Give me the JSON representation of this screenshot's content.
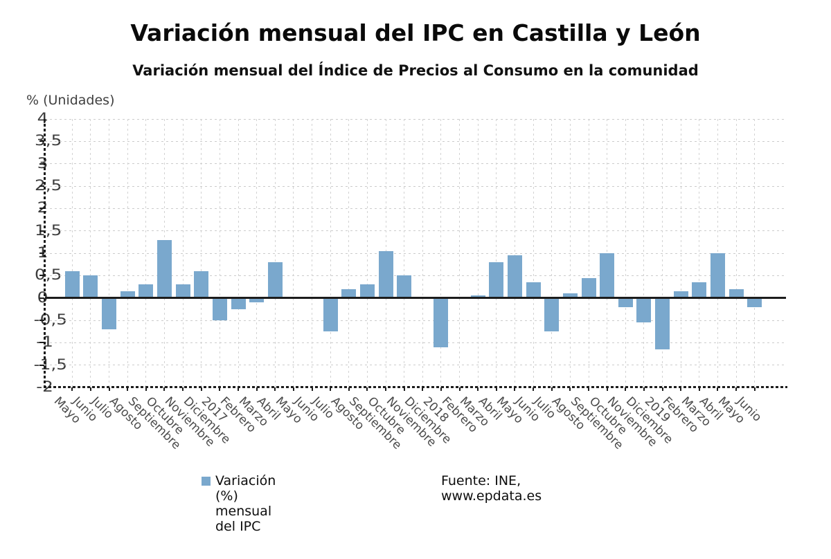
{
  "chart_data": {
    "type": "bar",
    "title": "Variación mensual del IPC en Castilla y León",
    "subtitle": "Variación mensual del Índice de Precios al Consumo en la comunidad",
    "unit_label": "% (Unidades)",
    "legend": "Variación (%) mensual del IPC",
    "source": "Fuente: INE, www.epdata.es",
    "bar_color": "#7aa8cd",
    "grid": true,
    "legend_position": "bottom",
    "ylim": [
      -2,
      4
    ],
    "ytick_step": 0.5,
    "ytick_labels": [
      "4",
      "3,5",
      "3",
      "2,5",
      "2",
      "1,5",
      "1",
      "0,5",
      "0",
      "-0,5",
      "-1",
      "-1,5",
      "-2"
    ],
    "categories": [
      "Mayo",
      "Junio",
      "Julio",
      "Agosto",
      "Septiembre",
      "Octubre",
      "Noviembre",
      "Diciembre",
      "2017",
      "Febrero",
      "Marzo",
      "Abril",
      "Mayo",
      "Junio",
      "Julio",
      "Agosto",
      "Septiembre",
      "Octubre",
      "Noviembre",
      "Diciembre",
      "2018",
      "Febrero",
      "Marzo",
      "Abril",
      "Mayo",
      "Junio",
      "Julio",
      "Agosto",
      "Septiembre",
      "Octubre",
      "Noviembre",
      "Diciembre",
      "2019",
      "Febrero",
      "Marzo",
      "Abril",
      "Mayo",
      "Junio"
    ],
    "values": [
      0.6,
      0.5,
      -0.7,
      0.15,
      0.3,
      1.3,
      0.3,
      0.6,
      -0.5,
      -0.25,
      -0.1,
      0.8,
      0.0,
      0.0,
      -0.75,
      0.2,
      0.3,
      1.05,
      0.5,
      0.0,
      -1.1,
      0.0,
      0.05,
      0.8,
      0.95,
      0.35,
      -0.75,
      0.1,
      0.45,
      1.0,
      -0.2,
      -0.55,
      -1.15,
      0.15,
      0.35,
      1.0,
      0.2,
      -0.2
    ]
  }
}
